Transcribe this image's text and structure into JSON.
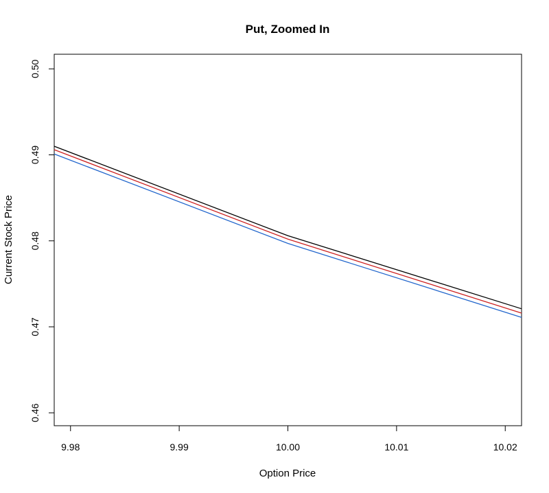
{
  "chart_data": {
    "type": "line",
    "title": "Put, Zoomed In",
    "xlabel": "Option Price",
    "ylabel": "Current Stock Price",
    "xlim": [
      9.9785,
      10.0215
    ],
    "ylim": [
      0.4585,
      0.5017
    ],
    "x_ticks": [
      9.98,
      9.99,
      10.0,
      10.01,
      10.02
    ],
    "x_tick_labels": [
      "9.98",
      "9.99",
      "10.00",
      "10.01",
      "10.02"
    ],
    "y_ticks": [
      0.46,
      0.47,
      0.48,
      0.49,
      0.5
    ],
    "y_tick_labels": [
      "0.46",
      "0.47",
      "0.48",
      "0.49",
      "0.50"
    ],
    "grid": false,
    "legend": "none",
    "series": [
      {
        "color": "#000000",
        "x": [
          9.9785,
          10.0,
          10.0215
        ],
        "y": [
          0.491,
          0.4806,
          0.4721
        ]
      },
      {
        "color": "#cc2222",
        "x": [
          9.9785,
          10.0,
          10.0215
        ],
        "y": [
          0.4906,
          0.4802,
          0.4716
        ]
      },
      {
        "color": "#2266cc",
        "x": [
          9.9785,
          10.0,
          10.0215
        ],
        "y": [
          0.4901,
          0.4797,
          0.4711
        ]
      }
    ]
  }
}
